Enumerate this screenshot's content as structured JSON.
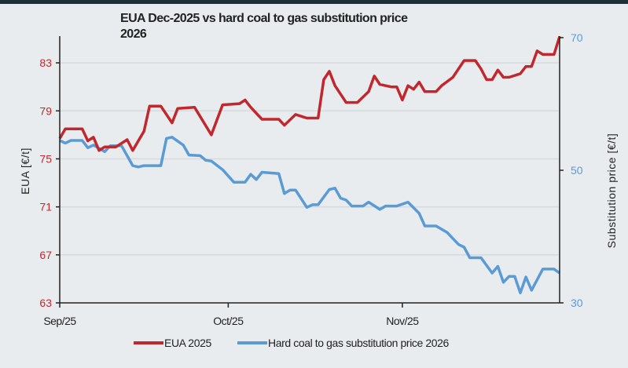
{
  "chart_data": {
    "type": "line",
    "title_line1": "EUA Dec-2025 vs hard coal to gas substitution price",
    "title_line2": "2026",
    "ylabel_left": "EUA [€/t]",
    "ylabel_right": "Substitution price [€/t]",
    "ylim_left": [
      63,
      85.1
    ],
    "ylim_right": [
      30,
      70
    ],
    "yticks_left": [
      "63",
      "67",
      "71",
      "75",
      "79",
      "83"
    ],
    "yticks_right": [
      "30",
      "50",
      "70"
    ],
    "xticks": [
      {
        "label": "Sep/25",
        "date": "2025-09-01"
      },
      {
        "label": "Oct/25",
        "date": "2025-10-01"
      },
      {
        "label": "Nov/25",
        "date": "2025-11-01"
      }
    ],
    "xlim": [
      "2025-09-01",
      "2025-11-29"
    ],
    "grid": "horizontal",
    "legend_position": "bottom",
    "series": [
      {
        "name": "EUA 2025",
        "axis": "left",
        "color": "#c0282d",
        "points": [
          [
            "2025-09-01",
            76.7
          ],
          [
            "2025-09-02",
            77.5
          ],
          [
            "2025-09-05",
            77.5
          ],
          [
            "2025-09-06",
            76.5
          ],
          [
            "2025-09-07",
            76.8
          ],
          [
            "2025-09-08",
            75.7
          ],
          [
            "2025-09-09",
            76.0
          ],
          [
            "2025-09-11",
            76.0
          ],
          [
            "2025-09-13",
            76.6
          ],
          [
            "2025-09-14",
            75.7
          ],
          [
            "2025-09-15",
            76.5
          ],
          [
            "2025-09-16",
            77.3
          ],
          [
            "2025-09-17",
            79.4
          ],
          [
            "2025-09-19",
            79.4
          ],
          [
            "2025-09-21",
            78.0
          ],
          [
            "2025-09-22",
            79.2
          ],
          [
            "2025-09-25",
            79.3
          ],
          [
            "2025-09-28",
            77.0
          ],
          [
            "2025-09-30",
            79.5
          ],
          [
            "2025-10-03",
            79.6
          ],
          [
            "2025-10-04",
            79.9
          ],
          [
            "2025-10-05",
            79.3
          ],
          [
            "2025-10-07",
            78.3
          ],
          [
            "2025-10-08",
            78.3
          ],
          [
            "2025-10-10",
            78.3
          ],
          [
            "2025-10-11",
            77.8
          ],
          [
            "2025-10-13",
            78.7
          ],
          [
            "2025-10-15",
            78.4
          ],
          [
            "2025-10-17",
            78.4
          ],
          [
            "2025-10-18",
            81.6
          ],
          [
            "2025-10-19",
            82.3
          ],
          [
            "2025-10-20",
            81.1
          ],
          [
            "2025-10-22",
            79.7
          ],
          [
            "2025-10-24",
            79.7
          ],
          [
            "2025-10-26",
            80.6
          ],
          [
            "2025-10-27",
            81.9
          ],
          [
            "2025-10-28",
            81.2
          ],
          [
            "2025-10-30",
            81.0
          ],
          [
            "2025-10-31",
            81.0
          ],
          [
            "2025-11-01",
            79.9
          ],
          [
            "2025-11-02",
            81.1
          ],
          [
            "2025-11-03",
            80.8
          ],
          [
            "2025-11-04",
            81.4
          ],
          [
            "2025-11-05",
            80.6
          ],
          [
            "2025-11-07",
            80.6
          ],
          [
            "2025-11-08",
            81.1
          ],
          [
            "2025-11-10",
            81.8
          ],
          [
            "2025-11-12",
            83.2
          ],
          [
            "2025-11-14",
            83.2
          ],
          [
            "2025-11-15",
            82.5
          ],
          [
            "2025-11-16",
            81.6
          ],
          [
            "2025-11-17",
            81.6
          ],
          [
            "2025-11-18",
            82.4
          ],
          [
            "2025-11-19",
            81.8
          ],
          [
            "2025-11-20",
            81.8
          ],
          [
            "2025-11-22",
            82.1
          ],
          [
            "2025-11-23",
            82.7
          ],
          [
            "2025-11-24",
            82.7
          ],
          [
            "2025-11-25",
            84.0
          ],
          [
            "2025-11-26",
            83.7
          ],
          [
            "2025-11-28",
            83.7
          ],
          [
            "2025-11-29",
            85.2
          ]
        ]
      },
      {
        "name": "Hard coal to gas substitution price 2026",
        "axis": "right",
        "color": "#5b9bd5",
        "points": [
          [
            "2025-09-01",
            54.5
          ],
          [
            "2025-09-02",
            54.1
          ],
          [
            "2025-09-03",
            54.5
          ],
          [
            "2025-09-05",
            54.5
          ],
          [
            "2025-09-06",
            53.4
          ],
          [
            "2025-09-07",
            53.8
          ],
          [
            "2025-09-09",
            52.8
          ],
          [
            "2025-09-10",
            53.7
          ],
          [
            "2025-09-12",
            53.7
          ],
          [
            "2025-09-14",
            50.7
          ],
          [
            "2025-09-15",
            50.5
          ],
          [
            "2025-09-16",
            50.7
          ],
          [
            "2025-09-19",
            50.7
          ],
          [
            "2025-09-20",
            54.8
          ],
          [
            "2025-09-21",
            55.0
          ],
          [
            "2025-09-23",
            53.8
          ],
          [
            "2025-09-24",
            52.3
          ],
          [
            "2025-09-26",
            52.2
          ],
          [
            "2025-09-27",
            51.5
          ],
          [
            "2025-09-28",
            51.4
          ],
          [
            "2025-09-30",
            50.1
          ],
          [
            "2025-10-02",
            48.2
          ],
          [
            "2025-10-04",
            48.2
          ],
          [
            "2025-10-05",
            49.4
          ],
          [
            "2025-10-06",
            48.6
          ],
          [
            "2025-10-07",
            49.7
          ],
          [
            "2025-10-10",
            49.5
          ],
          [
            "2025-10-11",
            46.5
          ],
          [
            "2025-10-12",
            47.0
          ],
          [
            "2025-10-13",
            47.0
          ],
          [
            "2025-10-15",
            44.4
          ],
          [
            "2025-10-16",
            44.8
          ],
          [
            "2025-10-17",
            44.8
          ],
          [
            "2025-10-19",
            47.1
          ],
          [
            "2025-10-20",
            47.3
          ],
          [
            "2025-10-21",
            45.8
          ],
          [
            "2025-10-22",
            45.5
          ],
          [
            "2025-10-23",
            44.6
          ],
          [
            "2025-10-25",
            44.6
          ],
          [
            "2025-10-26",
            45.2
          ],
          [
            "2025-10-28",
            44.1
          ],
          [
            "2025-10-29",
            44.6
          ],
          [
            "2025-10-31",
            44.6
          ],
          [
            "2025-11-02",
            45.2
          ],
          [
            "2025-11-04",
            43.5
          ],
          [
            "2025-11-05",
            41.6
          ],
          [
            "2025-11-07",
            41.6
          ],
          [
            "2025-11-09",
            40.6
          ],
          [
            "2025-11-11",
            38.8
          ],
          [
            "2025-11-12",
            38.4
          ],
          [
            "2025-11-13",
            36.8
          ],
          [
            "2025-11-15",
            36.8
          ],
          [
            "2025-11-17",
            34.5
          ],
          [
            "2025-11-18",
            35.5
          ],
          [
            "2025-11-19",
            33.1
          ],
          [
            "2025-11-20",
            34.0
          ],
          [
            "2025-11-21",
            34.0
          ],
          [
            "2025-11-22",
            31.5
          ],
          [
            "2025-11-23",
            33.9
          ],
          [
            "2025-11-24",
            31.9
          ],
          [
            "2025-11-26",
            35.1
          ],
          [
            "2025-11-28",
            35.1
          ],
          [
            "2025-11-29",
            34.5
          ]
        ]
      }
    ]
  }
}
